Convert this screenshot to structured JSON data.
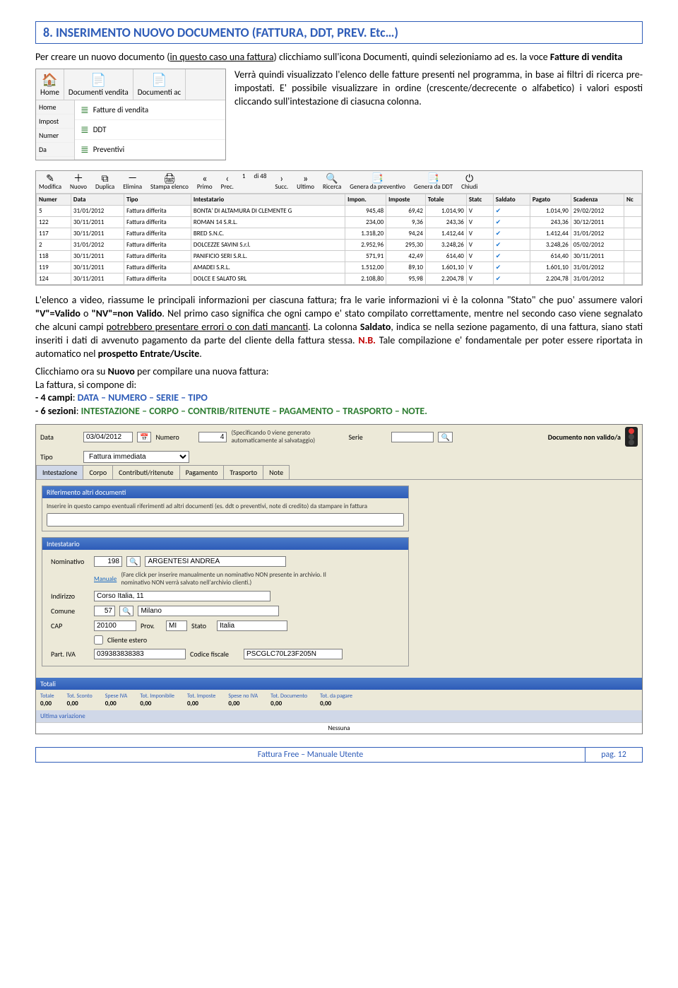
{
  "heading": "8. INSERIMENTO NUOVO DOCUMENTO (FATTURA, DDT, PREV. Etc…)",
  "intro1": "Per creare un nuovo documento (",
  "intro1u": "in questo caso una fattura",
  "intro1b": ") clicchiamo sull'icona Documenti, quindi selezioniamo ad es. la voce ",
  "intro1bold": "Fatture di vendita",
  "menu": {
    "top": [
      "Home",
      "Documenti vendita",
      "Documenti ac"
    ],
    "left": [
      "Home",
      "Impost",
      "Numer",
      "Da"
    ],
    "items": [
      "Fatture di vendita",
      "DDT",
      "Preventivi"
    ]
  },
  "sideText": "Verrà quindi visualizzato l'elenco delle fatture presenti nel programma, in base ai filtri di ricerca pre-impostati. E' possibile visualizzare in ordine (crescente/decrecente o alfabetico) i valori esposti cliccando sull'intestazione di ciasucna colonna.",
  "toolbar": [
    "Modifica",
    "Nuovo",
    "Duplica",
    "Elimina",
    "Stampa elenco",
    "Primo",
    "Prec.",
    "1",
    "di 48",
    "Succ.",
    "Ultimo",
    "Ricerca",
    "Genera da preventivo",
    "Genera da DDT",
    "Chiudi"
  ],
  "thead": [
    "Numer",
    "Data",
    "Tipo",
    "Intestatario",
    "Impon.",
    "Imposte",
    "Totale",
    "Statc",
    "Saldato",
    "Pagato",
    "Scadenza",
    "Nc"
  ],
  "rows": [
    [
      "5",
      "31/01/2012",
      "Fattura differita",
      "BONTA' DI ALTAMURA DI CLEMENTE G",
      "945,48",
      "69,42",
      "1.014,90",
      "V",
      "✔",
      "1.014,90",
      "29/02/2012",
      ""
    ],
    [
      "122",
      "30/11/2011",
      "Fattura differita",
      "ROMAN 14 S.R.L.",
      "234,00",
      "9,36",
      "243,36",
      "V",
      "✔",
      "243,36",
      "30/12/2011",
      ""
    ],
    [
      "117",
      "30/11/2011",
      "Fattura differita",
      "BRED S.N.C.",
      "1.318,20",
      "94,24",
      "1.412,44",
      "V",
      "✔",
      "1.412,44",
      "31/01/2012",
      ""
    ],
    [
      "2",
      "31/01/2012",
      "Fattura differita",
      "DOLCEZZE SAVINI S.r.l.",
      "2.952,96",
      "295,30",
      "3.248,26",
      "V",
      "✔",
      "3.248,26",
      "05/02/2012",
      ""
    ],
    [
      "118",
      "30/11/2011",
      "Fattura differita",
      "PANIFICIO SERI S.R.L.",
      "571,91",
      "42,49",
      "614,40",
      "V",
      "✔",
      "614,40",
      "30/11/2011",
      ""
    ],
    [
      "119",
      "30/11/2011",
      "Fattura differita",
      "AMADEI S.R.L.",
      "1.512,00",
      "89,10",
      "1.601,10",
      "V",
      "✔",
      "1.601,10",
      "31/01/2012",
      ""
    ],
    [
      "124",
      "30/11/2011",
      "Fattura differita",
      "DOLCE E SALATO SRL",
      "2.108,80",
      "95,98",
      "2.204,78",
      "V",
      "✔",
      "2.204,78",
      "31/01/2012",
      ""
    ]
  ],
  "para2a": "L'elenco a video, riassume le principali informazioni per ciascuna fattura; fra le varie informazioni vi è la colonna \"Stato\" che puo' assumere valori ",
  "para2b": "\"V\"=Valido",
  "para2c": " o ",
  "para2d": "\"NV\"=non Valido",
  "para2e": ". Nel primo caso significa che ogni campo e' stato compilato correttamente, mentre nel secondo caso viene segnalato che alcuni campi ",
  "para2f": "potrebbero presentare errori o con dati mancanti",
  "para2g": ". La colonna ",
  "para2h": "Saldato",
  "para2i": ", indica se nella sezione pagamento, di una fattura, siano stati inseriti i dati di avvenuto pagamento da parte del cliente della fattura stessa. ",
  "para2nb": "N.B.",
  "para2j": " Tale compilazione e' fondamentale per poter essere riportata in automatico nel ",
  "para2k": "prospetto Entrate/Uscite",
  "para2l": ".",
  "para3a": "Clicchiamo ora su ",
  "para3b": "Nuovo",
  "para3c": " per compilare una nuova fattura:",
  "para4": "La fattura, si compone di:",
  "campi_lbl": " - 4  campi",
  "campi_val": "DATA – NUMERO – SERIE – TIPO",
  "sezioni_lbl": " - 6 sezioni",
  "sezioni_val": "INTESTAZIONE – CORPO – CONTRIB/RITENUTE – PAGAMENTO – TRASPORTO – NOTE.",
  "form": {
    "data": "03/04/2012",
    "numero": "4",
    "numeroHint": "(Specificando 0 viene generato automaticamente al salvataggio)",
    "serie": "",
    "tipo": "Fattura immediata",
    "validity": "Documento non valido/a",
    "tabs": [
      "Intestazione",
      "Corpo",
      "Contributi/ritenute",
      "Pagamento",
      "Trasporto",
      "Note"
    ],
    "rifHdr": "Riferimento altri documenti",
    "rifTxt": "Inserire in questo campo eventuali riferimenti ad altri documenti (es. ddt o preventivi, note di credito) da stampare in fattura",
    "intHdr": "Intestatario",
    "nomCode": "198",
    "nomName": "ARGENTESI ANDREA",
    "manuale": "Manuale",
    "manualeHint": "(Fare click per inserire manualmente un nominativo NON presente in archivio. Il nominativo NON verrà salvato nell'archivio clienti.)",
    "indirizzo": "Corso Italia, 11",
    "comuneCode": "57",
    "comune": "Milano",
    "cap": "20100",
    "prov": "MI",
    "stato": "Italia",
    "estero": "Cliente estero",
    "piva": "039383838383",
    "cf": "PSCGLC70L23F205N",
    "totHdr": "Totali",
    "totCols": [
      "Totale",
      "Tot. Sconto",
      "Spese IVA",
      "Tot. Imponibile",
      "Tot. Imposte",
      "Spese no IVA",
      "Tot. Documento",
      "Tot. da pagare"
    ],
    "totVals": [
      "0,00",
      "0,00",
      "0,00",
      "0,00",
      "0,00",
      "0,00",
      "0,00",
      "0,00"
    ],
    "ultima": "Ultima variazione",
    "nessuna": "Nessuna"
  },
  "footer": {
    "title": "Fattura Free – Manuale Utente",
    "page": "pag. 12"
  }
}
